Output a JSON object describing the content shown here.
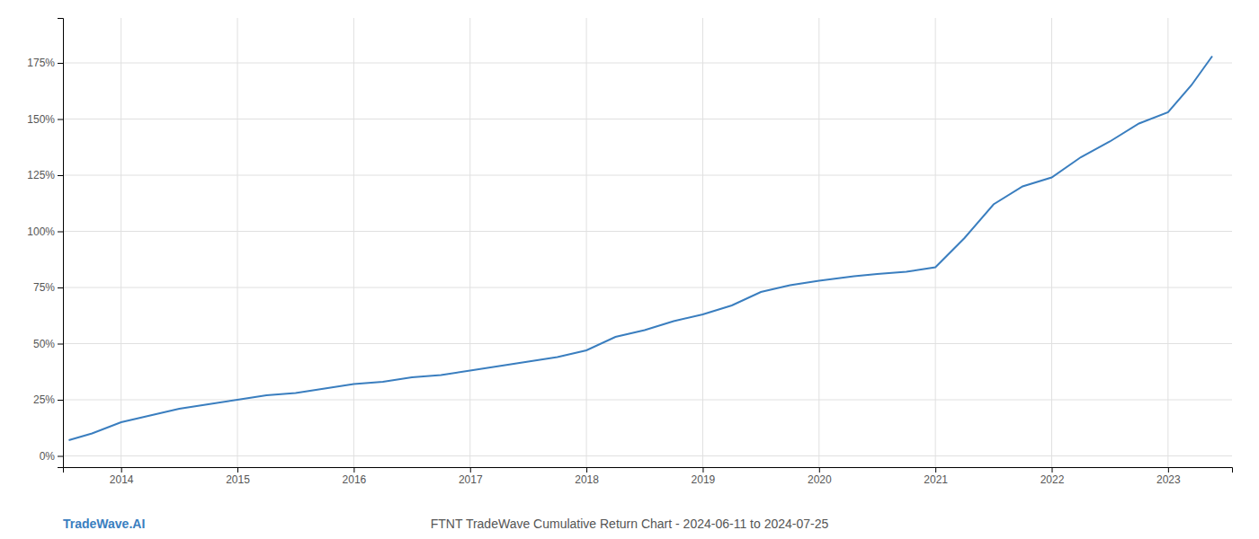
{
  "chart_data": {
    "type": "line",
    "title": "FTNT TradeWave Cumulative Return Chart - 2024-06-11 to 2024-07-25",
    "annotations": [
      "TradeWave.AI"
    ],
    "x": [
      2013.55,
      2013.75,
      2014.0,
      2014.25,
      2014.5,
      2014.75,
      2015.0,
      2015.25,
      2015.5,
      2015.75,
      2016.0,
      2016.25,
      2016.5,
      2016.75,
      2017.0,
      2017.25,
      2017.5,
      2017.75,
      2018.0,
      2018.25,
      2018.5,
      2018.75,
      2019.0,
      2019.25,
      2019.5,
      2019.75,
      2020.0,
      2020.15,
      2020.3,
      2020.5,
      2020.75,
      2021.0,
      2021.25,
      2021.5,
      2021.75,
      2022.0,
      2022.25,
      2022.5,
      2022.75,
      2023.0,
      2023.2,
      2023.38
    ],
    "values": [
      7,
      10,
      15,
      18,
      21,
      23,
      25,
      27,
      28,
      30,
      32,
      33,
      35,
      36,
      38,
      40,
      42,
      44,
      47,
      53,
      56,
      60,
      63,
      67,
      73,
      76,
      78,
      79,
      80,
      81,
      82,
      84,
      97,
      112,
      120,
      124,
      133,
      140,
      148,
      153,
      165,
      178
    ],
    "color": "#3a7ebf",
    "xlim": [
      2013.5,
      2023.55
    ],
    "xticks": [
      2014,
      2015,
      2016,
      2017,
      2018,
      2019,
      2020,
      2021,
      2022,
      2023
    ],
    "ylim": [
      -5,
      195
    ],
    "yticks": [
      {
        "value": 0,
        "label": "0%"
      },
      {
        "value": 25,
        "label": "25%"
      },
      {
        "value": 50,
        "label": "50%"
      },
      {
        "value": 75,
        "label": "75%"
      },
      {
        "value": 100,
        "label": "100%"
      },
      {
        "value": 125,
        "label": "125%"
      },
      {
        "value": 150,
        "label": "150%"
      },
      {
        "value": 175,
        "label": "175%"
      }
    ],
    "grid": true
  }
}
